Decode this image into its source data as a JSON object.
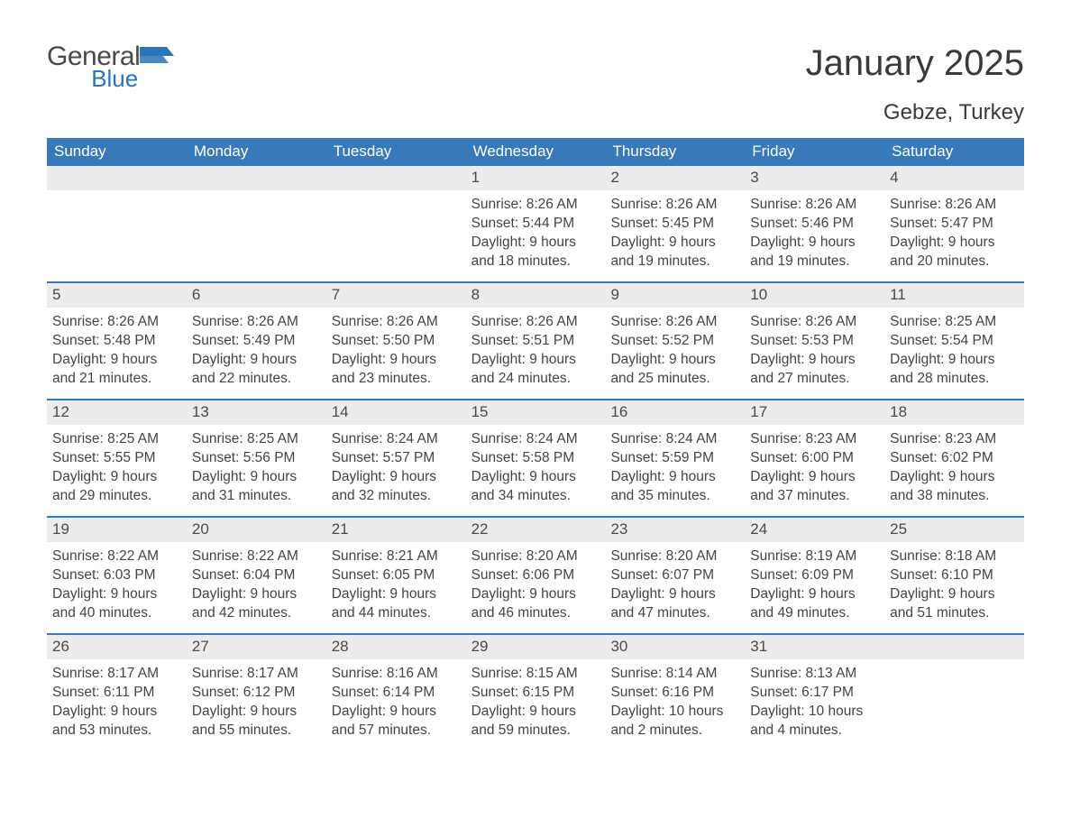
{
  "logo": {
    "text_general": "General",
    "text_blue": "Blue",
    "icon_color": "#2b74b8"
  },
  "title": "January 2025",
  "location": "Gebze, Turkey",
  "colors": {
    "header_bg": "#3779b9",
    "header_text": "#ffffff",
    "row_divider": "#3779b9",
    "daynum_bg": "#ececec",
    "body_text": "#444444",
    "title_text": "#3a3a3a",
    "background": "#ffffff"
  },
  "typography": {
    "title_fontsize": 40,
    "location_fontsize": 24,
    "dow_fontsize": 17,
    "daynum_fontsize": 17,
    "body_fontsize": 15.5
  },
  "days_of_week": [
    "Sunday",
    "Monday",
    "Tuesday",
    "Wednesday",
    "Thursday",
    "Friday",
    "Saturday"
  ],
  "weeks": [
    [
      {
        "num": "",
        "sunrise": "",
        "sunset": "",
        "daylight": ""
      },
      {
        "num": "",
        "sunrise": "",
        "sunset": "",
        "daylight": ""
      },
      {
        "num": "",
        "sunrise": "",
        "sunset": "",
        "daylight": ""
      },
      {
        "num": "1",
        "sunrise": "Sunrise: 8:26 AM",
        "sunset": "Sunset: 5:44 PM",
        "daylight": "Daylight: 9 hours and 18 minutes."
      },
      {
        "num": "2",
        "sunrise": "Sunrise: 8:26 AM",
        "sunset": "Sunset: 5:45 PM",
        "daylight": "Daylight: 9 hours and 19 minutes."
      },
      {
        "num": "3",
        "sunrise": "Sunrise: 8:26 AM",
        "sunset": "Sunset: 5:46 PM",
        "daylight": "Daylight: 9 hours and 19 minutes."
      },
      {
        "num": "4",
        "sunrise": "Sunrise: 8:26 AM",
        "sunset": "Sunset: 5:47 PM",
        "daylight": "Daylight: 9 hours and 20 minutes."
      }
    ],
    [
      {
        "num": "5",
        "sunrise": "Sunrise: 8:26 AM",
        "sunset": "Sunset: 5:48 PM",
        "daylight": "Daylight: 9 hours and 21 minutes."
      },
      {
        "num": "6",
        "sunrise": "Sunrise: 8:26 AM",
        "sunset": "Sunset: 5:49 PM",
        "daylight": "Daylight: 9 hours and 22 minutes."
      },
      {
        "num": "7",
        "sunrise": "Sunrise: 8:26 AM",
        "sunset": "Sunset: 5:50 PM",
        "daylight": "Daylight: 9 hours and 23 minutes."
      },
      {
        "num": "8",
        "sunrise": "Sunrise: 8:26 AM",
        "sunset": "Sunset: 5:51 PM",
        "daylight": "Daylight: 9 hours and 24 minutes."
      },
      {
        "num": "9",
        "sunrise": "Sunrise: 8:26 AM",
        "sunset": "Sunset: 5:52 PM",
        "daylight": "Daylight: 9 hours and 25 minutes."
      },
      {
        "num": "10",
        "sunrise": "Sunrise: 8:26 AM",
        "sunset": "Sunset: 5:53 PM",
        "daylight": "Daylight: 9 hours and 27 minutes."
      },
      {
        "num": "11",
        "sunrise": "Sunrise: 8:25 AM",
        "sunset": "Sunset: 5:54 PM",
        "daylight": "Daylight: 9 hours and 28 minutes."
      }
    ],
    [
      {
        "num": "12",
        "sunrise": "Sunrise: 8:25 AM",
        "sunset": "Sunset: 5:55 PM",
        "daylight": "Daylight: 9 hours and 29 minutes."
      },
      {
        "num": "13",
        "sunrise": "Sunrise: 8:25 AM",
        "sunset": "Sunset: 5:56 PM",
        "daylight": "Daylight: 9 hours and 31 minutes."
      },
      {
        "num": "14",
        "sunrise": "Sunrise: 8:24 AM",
        "sunset": "Sunset: 5:57 PM",
        "daylight": "Daylight: 9 hours and 32 minutes."
      },
      {
        "num": "15",
        "sunrise": "Sunrise: 8:24 AM",
        "sunset": "Sunset: 5:58 PM",
        "daylight": "Daylight: 9 hours and 34 minutes."
      },
      {
        "num": "16",
        "sunrise": "Sunrise: 8:24 AM",
        "sunset": "Sunset: 5:59 PM",
        "daylight": "Daylight: 9 hours and 35 minutes."
      },
      {
        "num": "17",
        "sunrise": "Sunrise: 8:23 AM",
        "sunset": "Sunset: 6:00 PM",
        "daylight": "Daylight: 9 hours and 37 minutes."
      },
      {
        "num": "18",
        "sunrise": "Sunrise: 8:23 AM",
        "sunset": "Sunset: 6:02 PM",
        "daylight": "Daylight: 9 hours and 38 minutes."
      }
    ],
    [
      {
        "num": "19",
        "sunrise": "Sunrise: 8:22 AM",
        "sunset": "Sunset: 6:03 PM",
        "daylight": "Daylight: 9 hours and 40 minutes."
      },
      {
        "num": "20",
        "sunrise": "Sunrise: 8:22 AM",
        "sunset": "Sunset: 6:04 PM",
        "daylight": "Daylight: 9 hours and 42 minutes."
      },
      {
        "num": "21",
        "sunrise": "Sunrise: 8:21 AM",
        "sunset": "Sunset: 6:05 PM",
        "daylight": "Daylight: 9 hours and 44 minutes."
      },
      {
        "num": "22",
        "sunrise": "Sunrise: 8:20 AM",
        "sunset": "Sunset: 6:06 PM",
        "daylight": "Daylight: 9 hours and 46 minutes."
      },
      {
        "num": "23",
        "sunrise": "Sunrise: 8:20 AM",
        "sunset": "Sunset: 6:07 PM",
        "daylight": "Daylight: 9 hours and 47 minutes."
      },
      {
        "num": "24",
        "sunrise": "Sunrise: 8:19 AM",
        "sunset": "Sunset: 6:09 PM",
        "daylight": "Daylight: 9 hours and 49 minutes."
      },
      {
        "num": "25",
        "sunrise": "Sunrise: 8:18 AM",
        "sunset": "Sunset: 6:10 PM",
        "daylight": "Daylight: 9 hours and 51 minutes."
      }
    ],
    [
      {
        "num": "26",
        "sunrise": "Sunrise: 8:17 AM",
        "sunset": "Sunset: 6:11 PM",
        "daylight": "Daylight: 9 hours and 53 minutes."
      },
      {
        "num": "27",
        "sunrise": "Sunrise: 8:17 AM",
        "sunset": "Sunset: 6:12 PM",
        "daylight": "Daylight: 9 hours and 55 minutes."
      },
      {
        "num": "28",
        "sunrise": "Sunrise: 8:16 AM",
        "sunset": "Sunset: 6:14 PM",
        "daylight": "Daylight: 9 hours and 57 minutes."
      },
      {
        "num": "29",
        "sunrise": "Sunrise: 8:15 AM",
        "sunset": "Sunset: 6:15 PM",
        "daylight": "Daylight: 9 hours and 59 minutes."
      },
      {
        "num": "30",
        "sunrise": "Sunrise: 8:14 AM",
        "sunset": "Sunset: 6:16 PM",
        "daylight": "Daylight: 10 hours and 2 minutes."
      },
      {
        "num": "31",
        "sunrise": "Sunrise: 8:13 AM",
        "sunset": "Sunset: 6:17 PM",
        "daylight": "Daylight: 10 hours and 4 minutes."
      },
      {
        "num": "",
        "sunrise": "",
        "sunset": "",
        "daylight": ""
      }
    ]
  ]
}
